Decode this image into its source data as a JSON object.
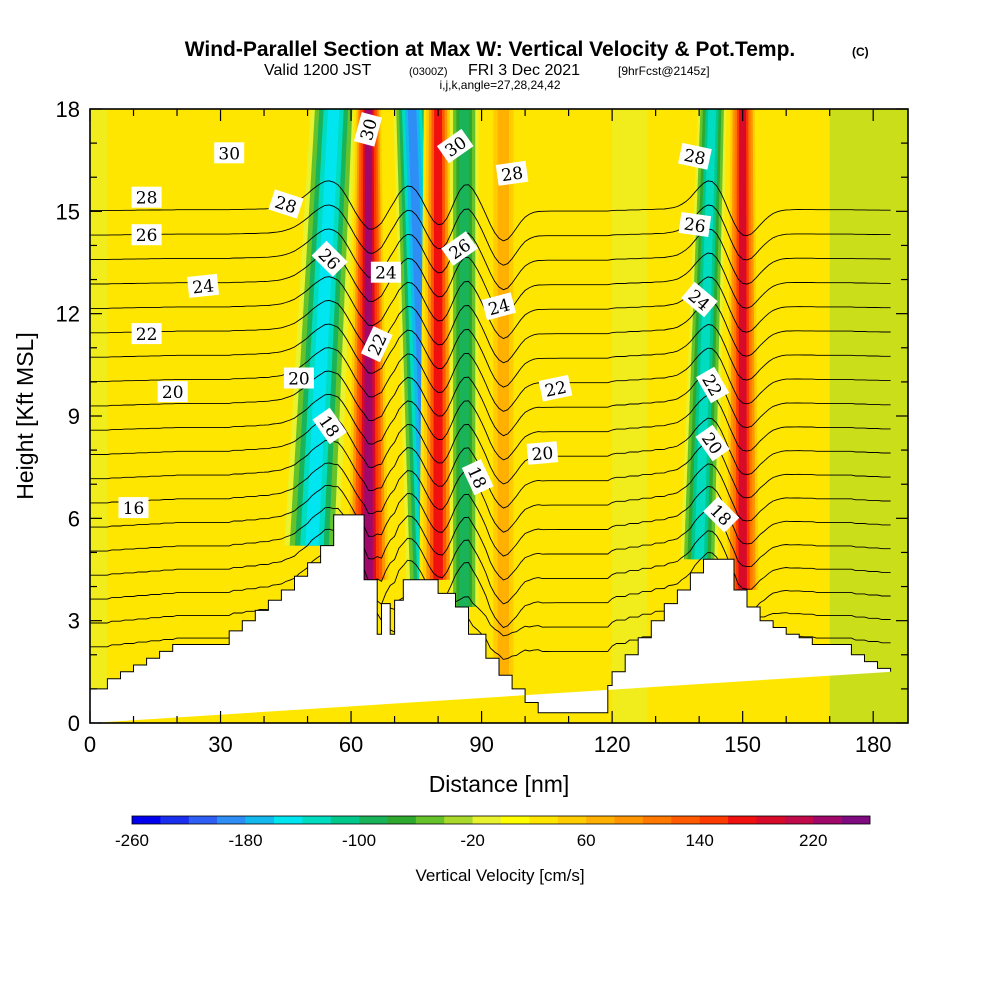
{
  "header": {
    "title_main": "Wind-Parallel Section at Max W: Vertical Velocity & Pot.Temp.",
    "title_mark": "(C)",
    "valid_prefix": "Valid 1200 JST",
    "valid_utc": "(0300Z)",
    "valid_date": "FRI 3 Dec 2021",
    "forecast_tag": "[9hrFcst@2145z]",
    "indices": "i,j,k,angle=27,28,24,42"
  },
  "chart_data": {
    "type": "heatmap",
    "xlabel": "Distance [nm]",
    "ylabel": "Height [Kft MSL]",
    "xlim": [
      0,
      188
    ],
    "ylim": [
      0,
      18
    ],
    "x_ticks": [
      0,
      30,
      60,
      90,
      120,
      150,
      180
    ],
    "y_ticks": [
      0,
      3,
      6,
      9,
      12,
      15,
      18
    ],
    "x_minor_step": 10,
    "y_minor_step": 1,
    "grid": false,
    "colorbar": {
      "label": "Vertical Velocity [cm/s]",
      "min": -260,
      "max": 260,
      "step": 20,
      "tick_labels": [
        -260,
        -180,
        -100,
        -20,
        60,
        140,
        220
      ],
      "colors": [
        "#0000ee",
        "#1a2ef0",
        "#2f5ef5",
        "#2f8ef5",
        "#13b8ee",
        "#00e6f0",
        "#00dcc0",
        "#00c88a",
        "#19b45a",
        "#2ea82e",
        "#66c22b",
        "#a8d92b",
        "#e8f22e",
        "#ffff00",
        "#ffe600",
        "#ffcc00",
        "#ffb000",
        "#ff9500",
        "#ff7800",
        "#ff5a00",
        "#ff3a00",
        "#f01010",
        "#d80a2a",
        "#c00a4a",
        "#a0086a",
        "#800a80"
      ]
    },
    "terrain": {
      "x": [
        0,
        4,
        4,
        7,
        7,
        10,
        10,
        13,
        13,
        16,
        16,
        19,
        19,
        32,
        32,
        35,
        35,
        38,
        38,
        41,
        41,
        44,
        44,
        47,
        47,
        50,
        50,
        53,
        53,
        56,
        56,
        63,
        63,
        66,
        66,
        67,
        67,
        69,
        69,
        70,
        70,
        72,
        72,
        73,
        73,
        80,
        80,
        84,
        84,
        87,
        87,
        91,
        91,
        94,
        94,
        97,
        97,
        100,
        100,
        103,
        103,
        106,
        106,
        109,
        109,
        119,
        119,
        120,
        120,
        123,
        123,
        126,
        126,
        129,
        129,
        132,
        132,
        135,
        135,
        138,
        138,
        141,
        141,
        148,
        148,
        151,
        151,
        154,
        154,
        157,
        157,
        160,
        160,
        163,
        163,
        166,
        166,
        175,
        175,
        178,
        178,
        181,
        181,
        184,
        184,
        188,
        188
      ],
      "y": [
        1,
        1,
        1.3,
        1.3,
        1.5,
        1.5,
        1.7,
        1.7,
        1.9,
        1.9,
        2.1,
        2.1,
        2.3,
        2.3,
        2.7,
        2.7,
        3,
        3,
        3.3,
        3.3,
        3.6,
        3.6,
        3.9,
        3.9,
        4.3,
        4.3,
        4.7,
        4.7,
        5.2,
        5.2,
        6.1,
        6.1,
        4.2,
        4.2,
        2.6,
        2.6,
        3.5,
        3.5,
        2.6,
        2.6,
        3.6,
        3.6,
        4.2,
        4.2,
        4.2,
        4.2,
        3.8,
        3.8,
        3.4,
        3.4,
        2.6,
        2.6,
        1.9,
        1.9,
        1.4,
        1.4,
        1,
        1,
        0.6,
        0.6,
        0.3,
        0.3,
        0.3,
        0.3,
        0.3,
        0.3,
        1.1,
        1.1,
        1.5,
        1.5,
        2.0,
        2.0,
        2.5,
        2.5,
        3.0,
        3.0,
        3.5,
        3.5,
        3.9,
        3.9,
        4.4,
        4.4,
        4.8,
        4.8,
        3.9,
        3.9,
        3.4,
        3.4,
        3.0,
        3.0,
        2.8,
        2.8,
        2.6,
        2.6,
        2.5,
        2.5,
        2.3,
        2.3,
        2.0,
        2.0,
        1.8,
        1.8,
        1.6,
        1.6,
        1.5
      ]
    },
    "velocity_features": [
      {
        "x": 56,
        "w_top": 5,
        "w_bottom": 6,
        "lean": 5,
        "value": -160
      },
      {
        "x": 64,
        "w_top": 3,
        "w_bottom": 5,
        "lean": 0,
        "value": 220
      },
      {
        "x": 74,
        "w_top": 4,
        "w_bottom": 5,
        "lean": -4,
        "value": -200
      },
      {
        "x": 80,
        "w_top": 3,
        "w_bottom": 4,
        "lean": 0,
        "value": 160
      },
      {
        "x": 86,
        "w_top": 3,
        "w_bottom": 3,
        "lean": 0,
        "value": -100
      },
      {
        "x": 95,
        "w_top": 3,
        "w_bottom": 3,
        "lean": 0,
        "value": 60
      },
      {
        "x": 143,
        "w_top": 3,
        "w_bottom": 4,
        "lean": 3,
        "value": -140
      },
      {
        "x": 150,
        "w_top": 3,
        "w_bottom": 4,
        "lean": 0,
        "value": 180
      }
    ],
    "theta_contours": {
      "levels": [
        16,
        17,
        18,
        19,
        20,
        21,
        22,
        23,
        24,
        25,
        26,
        27,
        28,
        29,
        30,
        31,
        32,
        33,
        34
      ],
      "labels": [
        {
          "text": "30",
          "x": 32,
          "y": 16.7,
          "rot": 0
        },
        {
          "text": "28",
          "x": 13,
          "y": 15.4,
          "rot": 0
        },
        {
          "text": "26",
          "x": 13,
          "y": 14.3,
          "rot": 0
        },
        {
          "text": "24",
          "x": 26,
          "y": 12.8,
          "rot": -6
        },
        {
          "text": "22",
          "x": 13,
          "y": 11.4,
          "rot": 0
        },
        {
          "text": "20",
          "x": 19,
          "y": 9.7,
          "rot": 0
        },
        {
          "text": "16",
          "x": 10,
          "y": 6.3,
          "rot": 0
        },
        {
          "text": "28",
          "x": 45,
          "y": 15.2,
          "rot": 18
        },
        {
          "text": "26",
          "x": 55,
          "y": 13.6,
          "rot": 45
        },
        {
          "text": "20",
          "x": 48,
          "y": 10.1,
          "rot": 0
        },
        {
          "text": "18",
          "x": 55,
          "y": 8.7,
          "rot": 55
        },
        {
          "text": "30",
          "x": 64,
          "y": 17.4,
          "rot": -75
        },
        {
          "text": "24",
          "x": 68,
          "y": 13.2,
          "rot": 0
        },
        {
          "text": "22",
          "x": 66,
          "y": 11.1,
          "rot": -65
        },
        {
          "text": "30",
          "x": 84,
          "y": 16.9,
          "rot": -35
        },
        {
          "text": "28",
          "x": 97,
          "y": 16.1,
          "rot": -8
        },
        {
          "text": "26",
          "x": 85,
          "y": 13.9,
          "rot": -35
        },
        {
          "text": "24",
          "x": 94,
          "y": 12.2,
          "rot": -15
        },
        {
          "text": "22",
          "x": 107,
          "y": 9.8,
          "rot": -12
        },
        {
          "text": "20",
          "x": 104,
          "y": 7.9,
          "rot": -5
        },
        {
          "text": "18",
          "x": 89,
          "y": 7.2,
          "rot": 65
        },
        {
          "text": "28",
          "x": 139,
          "y": 16.6,
          "rot": 12
        },
        {
          "text": "26",
          "x": 139,
          "y": 14.6,
          "rot": 8
        },
        {
          "text": "24",
          "x": 140,
          "y": 12.4,
          "rot": 40
        },
        {
          "text": "22",
          "x": 143,
          "y": 9.9,
          "rot": 60
        },
        {
          "text": "20",
          "x": 143,
          "y": 8.2,
          "rot": 55
        },
        {
          "text": "18",
          "x": 145,
          "y": 6.1,
          "rot": 45
        }
      ]
    }
  }
}
